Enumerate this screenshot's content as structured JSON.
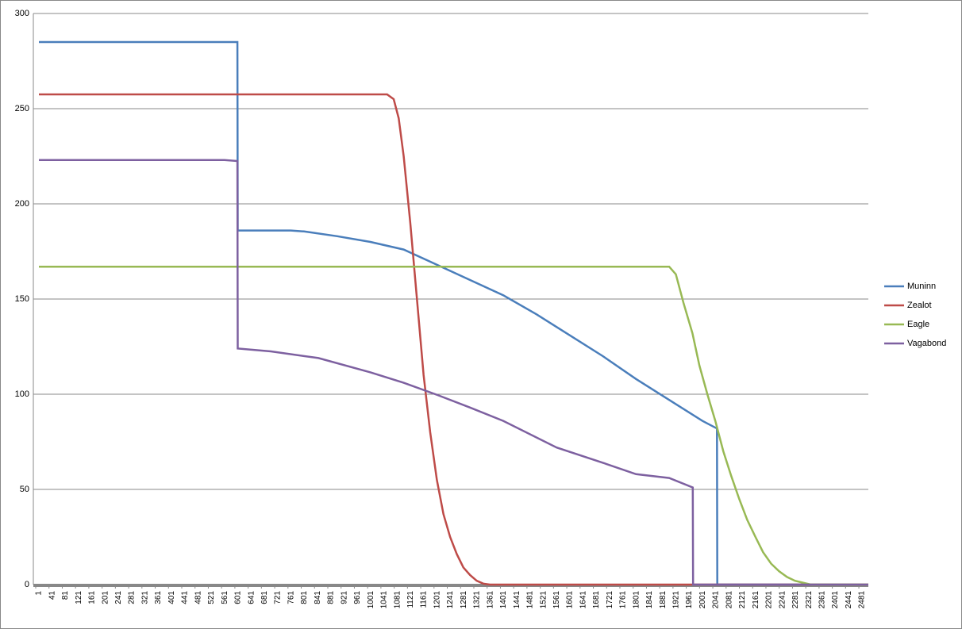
{
  "chart_data": {
    "type": "line",
    "xlim": [
      1,
      2500
    ],
    "ylim": [
      0,
      300
    ],
    "yticks": [
      0,
      50,
      100,
      150,
      200,
      250,
      300
    ],
    "xticks": [
      1,
      41,
      81,
      121,
      161,
      201,
      241,
      281,
      321,
      361,
      401,
      441,
      481,
      521,
      561,
      601,
      641,
      681,
      721,
      761,
      801,
      841,
      881,
      921,
      961,
      1001,
      1041,
      1081,
      1121,
      1161,
      1201,
      1241,
      1281,
      1321,
      1361,
      1401,
      1441,
      1481,
      1521,
      1561,
      1601,
      1641,
      1681,
      1721,
      1761,
      1801,
      1841,
      1881,
      1921,
      1961,
      2001,
      2041,
      2081,
      2121,
      2161,
      2201,
      2241,
      2281,
      2321,
      2361,
      2401,
      2441,
      2481
    ],
    "grid": true,
    "legend": "right",
    "series": [
      {
        "name": "Muninn",
        "color": "#4a7ebb",
        "x": [
          1,
          599,
          600,
          760,
          800,
          900,
          1000,
          1100,
          1200,
          1300,
          1400,
          1500,
          1600,
          1700,
          1800,
          1900,
          2000,
          2044,
          2045,
          2500
        ],
        "values": [
          285,
          285,
          186,
          186,
          185.5,
          183,
          180,
          176,
          168,
          160,
          152,
          142,
          131,
          120,
          108,
          97,
          86,
          82,
          0,
          0
        ]
      },
      {
        "name": "Zealot",
        "color": "#be4b48",
        "x": [
          1,
          1050,
          1070,
          1085,
          1100,
          1120,
          1140,
          1160,
          1180,
          1200,
          1220,
          1240,
          1260,
          1280,
          1300,
          1320,
          1340,
          1360,
          2500
        ],
        "values": [
          257.5,
          257.5,
          255,
          245,
          225,
          190,
          150,
          110,
          80,
          55,
          37,
          25,
          16,
          9,
          5,
          2,
          0.5,
          0,
          0
        ]
      },
      {
        "name": "Eagle",
        "color": "#98b954",
        "x": [
          1,
          1900,
          1920,
          1943,
          1970,
          1991,
          2015,
          2039,
          2063,
          2087,
          2111,
          2135,
          2160,
          2183,
          2207,
          2231,
          2255,
          2279,
          2303,
          2327,
          2500
        ],
        "values": [
          167,
          167,
          163,
          148,
          132,
          115,
          100,
          86,
          70,
          57,
          45,
          34,
          25,
          17,
          11,
          7,
          4,
          2,
          1,
          0,
          0
        ]
      },
      {
        "name": "Vagabond",
        "color": "#7d60a0",
        "x": [
          1,
          560,
          599,
          600,
          700,
          843,
          1000,
          1100,
          1202,
          1300,
          1400,
          1561,
          1700,
          1800,
          1900,
          1971,
          1972,
          2500
        ],
        "values": [
          223,
          223,
          222.5,
          124,
          122.5,
          119,
          111.5,
          106,
          99.6,
          93,
          86,
          72,
          64,
          58,
          56,
          51,
          0,
          0
        ]
      }
    ]
  }
}
